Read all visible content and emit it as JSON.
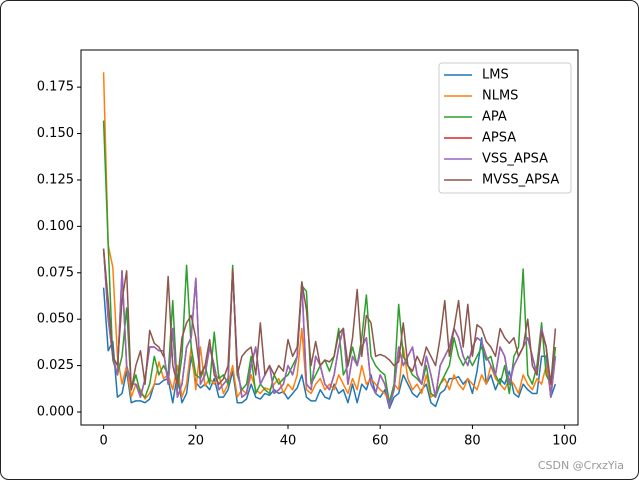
{
  "chart_data": {
    "type": "line",
    "x": [
      0,
      1,
      2,
      3,
      4,
      5,
      6,
      7,
      8,
      9,
      10,
      11,
      12,
      13,
      14,
      15,
      16,
      17,
      18,
      19,
      20,
      21,
      22,
      23,
      24,
      25,
      26,
      27,
      28,
      29,
      30,
      31,
      32,
      33,
      34,
      35,
      36,
      37,
      38,
      39,
      40,
      41,
      42,
      43,
      44,
      45,
      46,
      47,
      48,
      49,
      50,
      51,
      52,
      53,
      54,
      55,
      56,
      57,
      58,
      59,
      60,
      61,
      62,
      63,
      64,
      65,
      66,
      67,
      68,
      69,
      70,
      71,
      72,
      73,
      74,
      75,
      76,
      77,
      78,
      79,
      80,
      81,
      82,
      83,
      84,
      85,
      86,
      87,
      88,
      89,
      90,
      91,
      92,
      93,
      94,
      95,
      96,
      97,
      98
    ],
    "series": [
      {
        "name": "LMS",
        "color": "#1f77b4",
        "values": [
          0.067,
          0.033,
          0.038,
          0.008,
          0.01,
          0.022,
          0.005,
          0.006,
          0.006,
          0.005,
          0.007,
          0.015,
          0.015,
          0.017,
          0.018,
          0.005,
          0.02,
          0.005,
          0.01,
          0.03,
          0.016,
          0.013,
          0.015,
          0.012,
          0.018,
          0.008,
          0.008,
          0.012,
          0.022,
          0.005,
          0.005,
          0.007,
          0.015,
          0.008,
          0.007,
          0.01,
          0.009,
          0.012,
          0.01,
          0.011,
          0.007,
          0.01,
          0.013,
          0.02,
          0.008,
          0.006,
          0.006,
          0.012,
          0.008,
          0.007,
          0.015,
          0.01,
          0.012,
          0.005,
          0.015,
          0.005,
          0.015,
          0.012,
          0.02,
          0.01,
          0.008,
          0.012,
          0.002,
          0.008,
          0.01,
          0.02,
          0.015,
          0.01,
          0.008,
          0.012,
          0.015,
          0.005,
          0.003,
          0.01,
          0.012,
          0.018,
          0.018,
          0.019,
          0.015,
          0.018,
          0.01,
          0.022,
          0.04,
          0.015,
          0.02,
          0.012,
          0.018,
          0.015,
          0.022,
          0.01,
          0.008,
          0.015,
          0.012,
          0.01,
          0.01,
          0.03,
          0.03,
          0.008,
          0.015
        ]
      },
      {
        "name": "NLMS",
        "color": "#ff7f0e",
        "values": [
          0.183,
          0.09,
          0.078,
          0.03,
          0.015,
          0.025,
          0.008,
          0.015,
          0.012,
          0.007,
          0.01,
          0.015,
          0.027,
          0.018,
          0.02,
          0.012,
          0.025,
          0.008,
          0.015,
          0.035,
          0.012,
          0.035,
          0.014,
          0.018,
          0.015,
          0.02,
          0.01,
          0.015,
          0.025,
          0.008,
          0.012,
          0.01,
          0.02,
          0.012,
          0.01,
          0.013,
          0.012,
          0.015,
          0.018,
          0.01,
          0.015,
          0.012,
          0.02,
          0.045,
          0.012,
          0.01,
          0.015,
          0.018,
          0.012,
          0.015,
          0.012,
          0.02,
          0.015,
          0.01,
          0.018,
          0.012,
          0.025,
          0.015,
          0.018,
          0.015,
          0.012,
          0.01,
          0.005,
          0.015,
          0.012,
          0.035,
          0.018,
          0.012,
          0.015,
          0.01,
          0.02,
          0.008,
          0.01,
          0.015,
          0.018,
          0.012,
          0.02,
          0.015,
          0.012,
          0.018,
          0.015,
          0.012,
          0.02,
          0.015,
          0.025,
          0.018,
          0.015,
          0.012,
          0.018,
          0.015,
          0.01,
          0.02,
          0.015,
          0.012,
          0.018,
          0.015,
          0.025,
          0.01,
          0.035
        ]
      },
      {
        "name": "APA",
        "color": "#2ca02c",
        "values": [
          0.157,
          0.09,
          0.028,
          0.02,
          0.03,
          0.056,
          0.012,
          0.02,
          0.01,
          0.008,
          0.015,
          0.03,
          0.02,
          0.025,
          0.02,
          0.06,
          0.012,
          0.03,
          0.079,
          0.035,
          0.02,
          0.018,
          0.025,
          0.015,
          0.043,
          0.018,
          0.02,
          0.015,
          0.079,
          0.02,
          0.012,
          0.015,
          0.03,
          0.01,
          0.015,
          0.012,
          0.01,
          0.02,
          0.015,
          0.018,
          0.02,
          0.025,
          0.03,
          0.068,
          0.065,
          0.015,
          0.02,
          0.025,
          0.028,
          0.022,
          0.03,
          0.045,
          0.02,
          0.025,
          0.035,
          0.025,
          0.04,
          0.063,
          0.03,
          0.025,
          0.022,
          0.02,
          0.005,
          0.015,
          0.058,
          0.03,
          0.025,
          0.02,
          0.018,
          0.015,
          0.025,
          0.01,
          0.008,
          0.015,
          0.02,
          0.025,
          0.04,
          0.03,
          0.025,
          0.03,
          0.025,
          0.03,
          0.035,
          0.028,
          0.03,
          0.02,
          0.015,
          0.025,
          0.01,
          0.03,
          0.035,
          0.077,
          0.02,
          0.015,
          0.025,
          0.048,
          0.02,
          0.015,
          0.035
        ]
      },
      {
        "name": "APSA",
        "color": "#d62728",
        "values": [
          0.088,
          0.05,
          0.03,
          0.02,
          0.076,
          0.025,
          0.015,
          0.015,
          0.008,
          0.018,
          0.035,
          0.035,
          0.033,
          0.033,
          0.015,
          0.045,
          0.008,
          0.015,
          0.035,
          0.04,
          0.072,
          0.015,
          0.02,
          0.035,
          0.025,
          0.012,
          0.015,
          0.018,
          0.076,
          0.025,
          0.008,
          0.01,
          0.025,
          0.035,
          0.015,
          0.02,
          0.025,
          0.01,
          0.012,
          0.015,
          0.025,
          0.02,
          0.03,
          0.07,
          0.015,
          0.012,
          0.03,
          0.025,
          0.015,
          0.012,
          0.02,
          0.035,
          0.045,
          0.015,
          0.03,
          0.025,
          0.035,
          0.04,
          0.015,
          0.01,
          0.02,
          0.015,
          0.003,
          0.012,
          0.035,
          0.025,
          0.03,
          0.035,
          0.02,
          0.015,
          0.03,
          0.02,
          0.008,
          0.025,
          0.03,
          0.035,
          0.045,
          0.04,
          0.03,
          0.025,
          0.035,
          0.04,
          0.038,
          0.03,
          0.025,
          0.02,
          0.035,
          0.03,
          0.015,
          0.025,
          0.03,
          0.035,
          0.04,
          0.03,
          0.02,
          0.045,
          0.035,
          0.008,
          0.03
        ]
      },
      {
        "name": "VSS_APSA",
        "color": "#9467bd",
        "values": [
          0.088,
          0.05,
          0.03,
          0.02,
          0.076,
          0.025,
          0.015,
          0.015,
          0.008,
          0.018,
          0.035,
          0.035,
          0.033,
          0.033,
          0.015,
          0.045,
          0.008,
          0.015,
          0.035,
          0.04,
          0.072,
          0.015,
          0.02,
          0.035,
          0.025,
          0.012,
          0.015,
          0.018,
          0.076,
          0.025,
          0.008,
          0.01,
          0.025,
          0.035,
          0.015,
          0.02,
          0.025,
          0.01,
          0.012,
          0.015,
          0.025,
          0.02,
          0.03,
          0.07,
          0.015,
          0.012,
          0.03,
          0.025,
          0.015,
          0.012,
          0.02,
          0.035,
          0.045,
          0.015,
          0.03,
          0.025,
          0.035,
          0.04,
          0.015,
          0.01,
          0.02,
          0.015,
          0.003,
          0.012,
          0.035,
          0.025,
          0.03,
          0.035,
          0.02,
          0.015,
          0.03,
          0.02,
          0.008,
          0.025,
          0.03,
          0.035,
          0.045,
          0.04,
          0.03,
          0.025,
          0.035,
          0.04,
          0.038,
          0.03,
          0.025,
          0.02,
          0.035,
          0.03,
          0.015,
          0.025,
          0.03,
          0.035,
          0.04,
          0.03,
          0.02,
          0.045,
          0.035,
          0.008,
          0.03
        ]
      },
      {
        "name": "MVSS_APSA",
        "color": "#8c564b",
        "values": [
          0.088,
          0.06,
          0.03,
          0.025,
          0.06,
          0.076,
          0.012,
          0.025,
          0.033,
          0.015,
          0.044,
          0.037,
          0.035,
          0.03,
          0.073,
          0.025,
          0.015,
          0.04,
          0.048,
          0.052,
          0.04,
          0.02,
          0.025,
          0.039,
          0.02,
          0.015,
          0.018,
          0.025,
          0.077,
          0.02,
          0.03,
          0.033,
          0.035,
          0.02,
          0.048,
          0.02,
          0.025,
          0.02,
          0.025,
          0.022,
          0.039,
          0.03,
          0.035,
          0.07,
          0.055,
          0.025,
          0.038,
          0.025,
          0.028,
          0.027,
          0.03,
          0.042,
          0.045,
          0.025,
          0.04,
          0.066,
          0.03,
          0.052,
          0.048,
          0.03,
          0.031,
          0.03,
          0.028,
          0.025,
          0.027,
          0.048,
          0.025,
          0.022,
          0.03,
          0.025,
          0.035,
          0.03,
          0.025,
          0.04,
          0.06,
          0.03,
          0.045,
          0.06,
          0.035,
          0.058,
          0.03,
          0.047,
          0.045,
          0.038,
          0.035,
          0.03,
          0.045,
          0.04,
          0.037,
          0.04,
          0.03,
          0.035,
          0.05,
          0.025,
          0.02,
          0.043,
          0.035,
          0.015,
          0.045
        ]
      }
    ],
    "xlim": [
      -4.9,
      102.9
    ],
    "ylim": [
      -0.007,
      0.195
    ],
    "xticks": [
      0,
      20,
      40,
      60,
      80,
      100
    ],
    "yticks": [
      {
        "value": 0,
        "label": "0.000"
      },
      0.025,
      {
        "value": 0.05,
        "label": "0.050"
      },
      0.075,
      {
        "value": 0.1,
        "label": "0.100"
      },
      0.125,
      {
        "value": 0.15,
        "label": "0.150"
      },
      0.175
    ],
    "legend": "upper right",
    "watermark": "CSDN @CrxzYia"
  }
}
